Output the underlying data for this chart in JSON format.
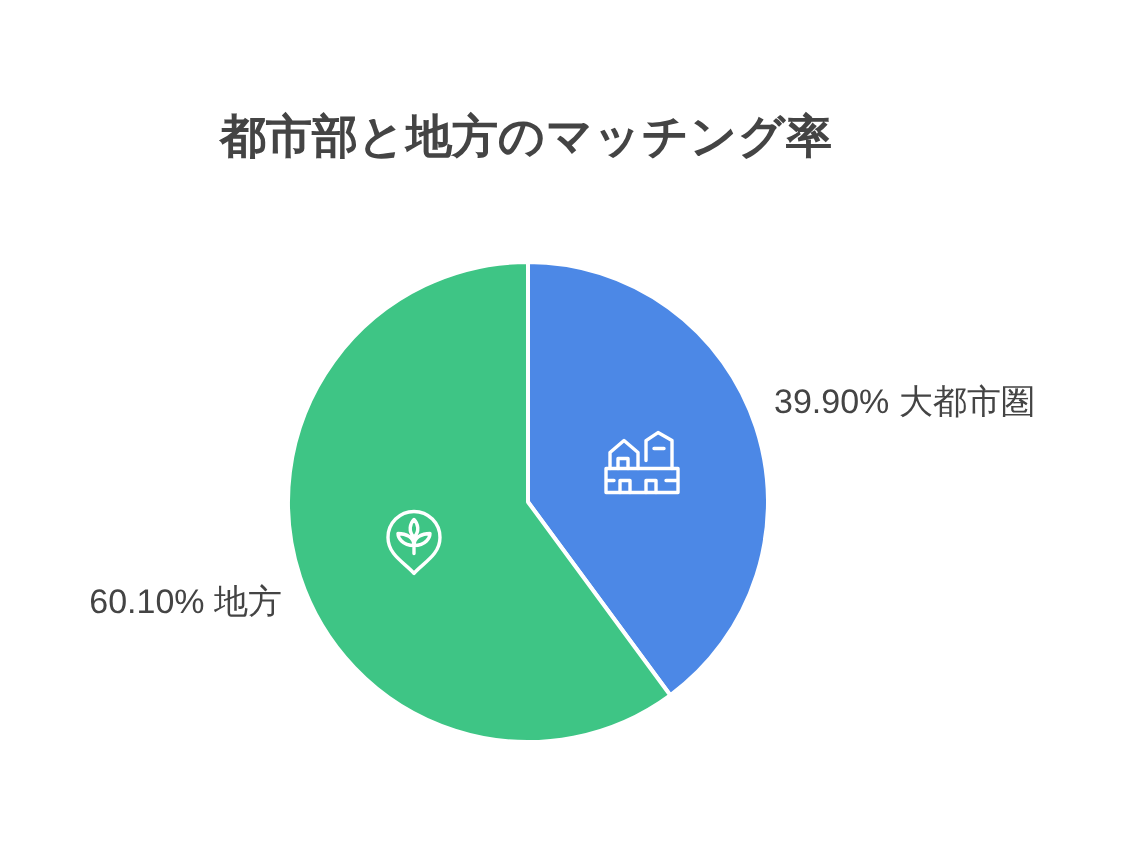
{
  "chart_data": {
    "type": "pie",
    "title": "都市部と地方のマッチング率",
    "categories": [
      "大都市圏",
      "地方"
    ],
    "values": [
      39.9,
      60.1
    ],
    "colors": [
      "#4c88e6",
      "#3ec585"
    ],
    "value_labels": [
      "39.90%",
      "60.10%"
    ]
  }
}
